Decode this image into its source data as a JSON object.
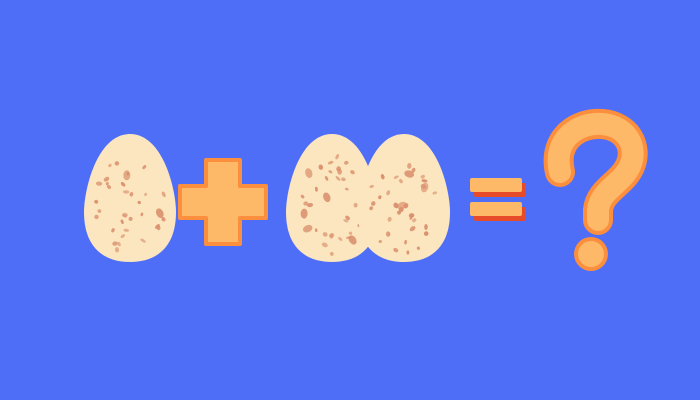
{
  "scene": {
    "background_color": "#4f6ef7",
    "equation": {
      "left_operand_count": 1,
      "operator": "plus",
      "right_operand_count": 2,
      "relation": "equals",
      "result": "unknown"
    },
    "icons": {
      "egg": "speckled-egg-icon",
      "plus": "plus-sign-icon",
      "equals": "equals-sign-icon",
      "question": "question-mark-icon"
    },
    "colors": {
      "egg_fill": "#fbe6bf",
      "egg_speckle": "#d98d6b",
      "symbol_fill": "#fdb967",
      "symbol_stroke": "#fb8f3d",
      "equals_shadow": "#e84b2a"
    }
  }
}
